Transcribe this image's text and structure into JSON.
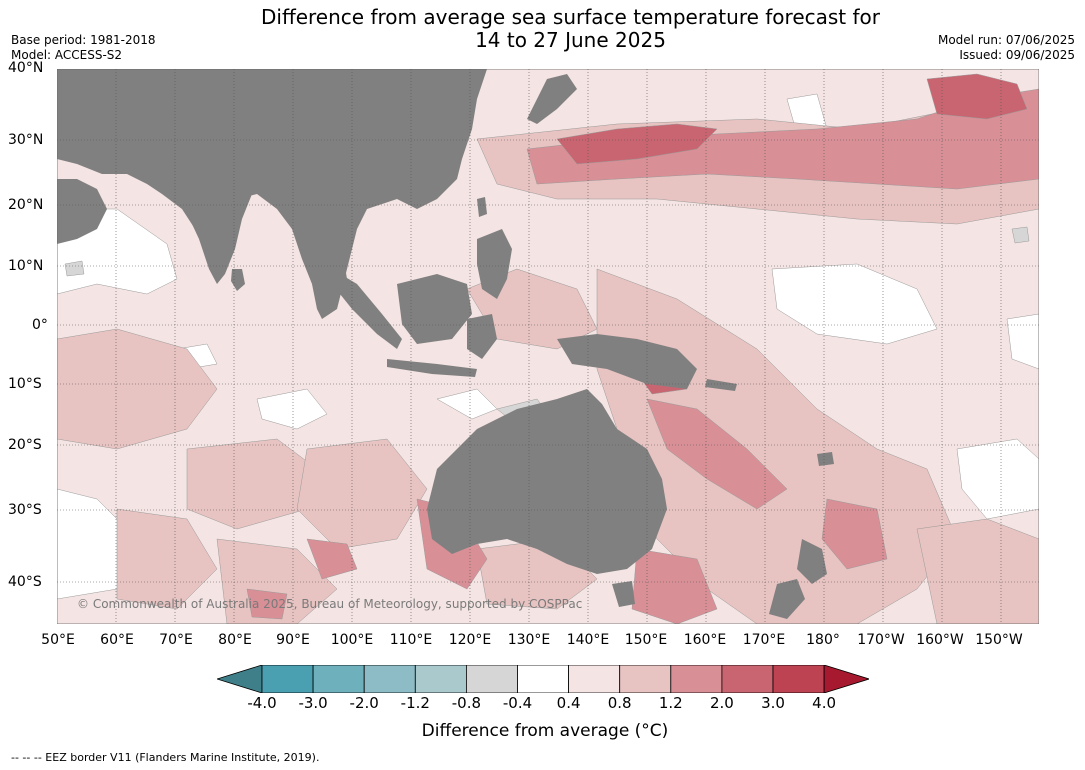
{
  "title_line1": "Difference from average sea surface temperature forecast for",
  "title_line2": "14 to 27 June 2025",
  "meta_left": [
    "Base period: 1981-2018",
    "Model: ACCESS-S2"
  ],
  "meta_right": [
    "Model run: 07/06/2025",
    "Issued: 09/06/2025"
  ],
  "lat_labels": [
    "40°N",
    "30°N",
    "20°N",
    "10°N",
    "0°",
    "10°S",
    "20°S",
    "30°S",
    "40°S"
  ],
  "lon_labels": [
    "50°E",
    "60°E",
    "70°E",
    "80°E",
    "90°E",
    "100°E",
    "110°E",
    "120°E",
    "130°E",
    "140°E",
    "150°E",
    "160°E",
    "170°E",
    "180°",
    "170°W",
    "160°W",
    "150°W"
  ],
  "copyright": "© Commonwealth of Australia 2025, Bureau of Meteorology, supported by COSPPac",
  "colorbar": {
    "label": "Difference from average (°C)",
    "ticks": [
      "-4.0",
      "-3.0",
      "-2.0",
      "-1.2",
      "-0.8",
      "-0.4",
      "0.4",
      "0.8",
      "1.2",
      "2.0",
      "3.0",
      "4.0"
    ],
    "colors": [
      "#3e7f89",
      "#4aa0b1",
      "#6fb0bd",
      "#8dbcc7",
      "#a9c9cd",
      "#d6d6d6",
      "#ffffff",
      "#f4e4e3",
      "#e7c3c1",
      "#d88f96",
      "#c86570",
      "#be4352",
      "#a6192e"
    ]
  },
  "footnote": "-- -- -- EEZ border V11 (Flanders Marine Institute, 2019).",
  "colors": {
    "land": "#808080",
    "ocean_base": "#f4e4e3",
    "grid": "#555555"
  }
}
